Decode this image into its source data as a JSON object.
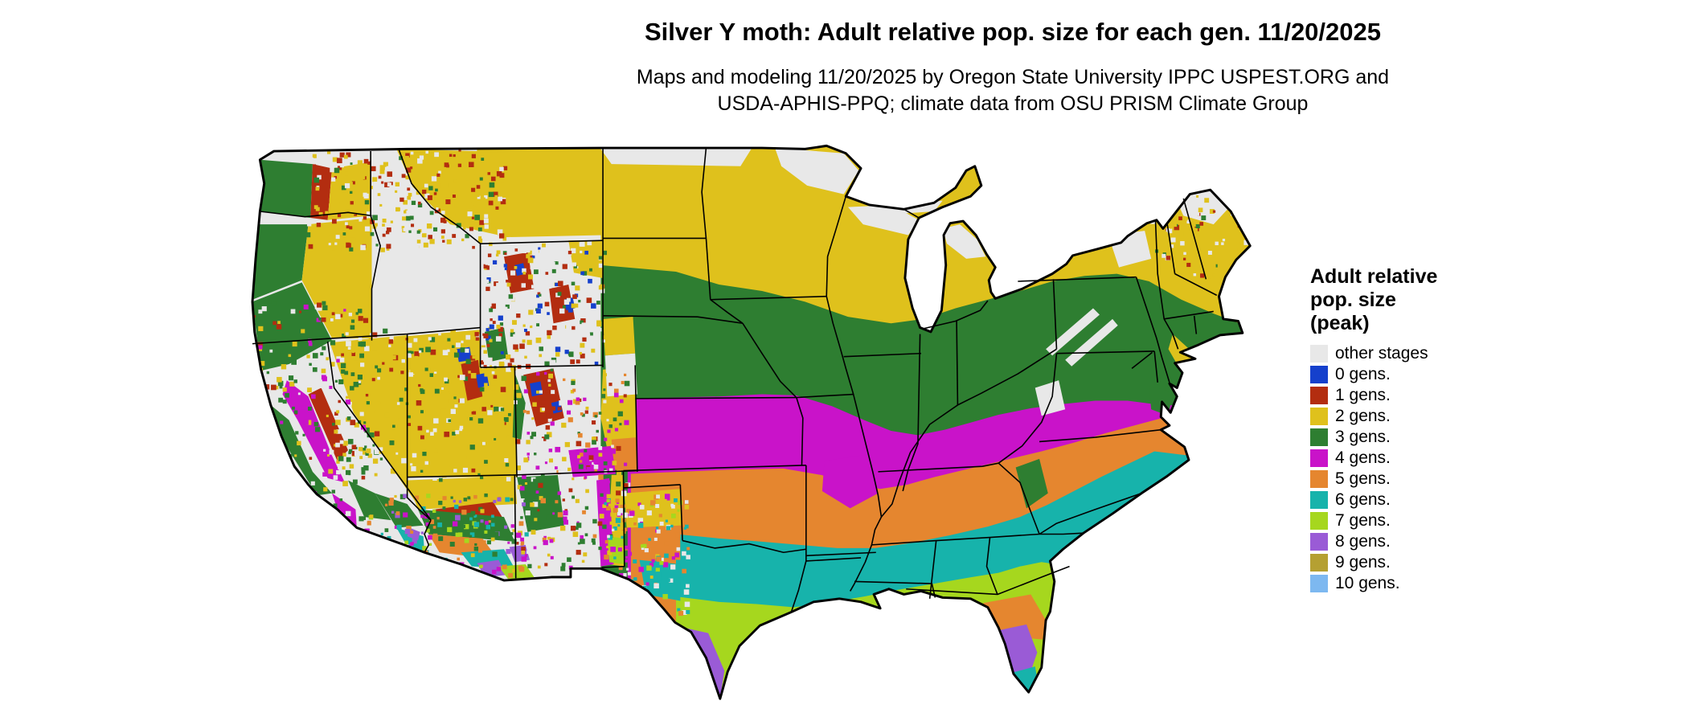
{
  "header": {
    "title": "Silver Y moth: Adult relative pop. size for each gen. 11/20/2025",
    "subtitle_line1": "Maps and modeling 11/20/2025 by Oregon State University IPPC USPEST.ORG and",
    "subtitle_line2": "USDA-APHIS-PPQ; climate data from OSU PRISM Climate Group"
  },
  "legend": {
    "title_lines": [
      "Adult relative",
      "pop. size",
      "(peak)"
    ],
    "entries": [
      {
        "label": "other stages",
        "color": "#e8e8e8"
      },
      {
        "label": "0 gens.",
        "color": "#1540cc"
      },
      {
        "label": "1 gens.",
        "color": "#b32d10"
      },
      {
        "label": "2 gens.",
        "color": "#dfc11c"
      },
      {
        "label": "3 gens.",
        "color": "#2e7e31"
      },
      {
        "label": "4 gens.",
        "color": "#c913c9"
      },
      {
        "label": "5 gens.",
        "color": "#e5862f"
      },
      {
        "label": "6 gens.",
        "color": "#17b3ab"
      },
      {
        "label": "7 gens.",
        "color": "#a6d71e"
      },
      {
        "label": "8 gens.",
        "color": "#9a5bd6"
      },
      {
        "label": "9 gens.",
        "color": "#b5a032"
      },
      {
        "label": "10 gens.",
        "color": "#7db8f0"
      }
    ]
  },
  "map": {
    "region": "Contiguous United States",
    "type": "raster choropleth of modeled insect generations",
    "band_order_north_to_south_east": [
      "other stages",
      "2 gens.",
      "3 gens.",
      "4 gens.",
      "5 gens.",
      "6 gens.",
      "7 gens.",
      "8 gens."
    ],
    "west_pattern": "mottled mosaic of 0-8 gens. following terrain"
  }
}
